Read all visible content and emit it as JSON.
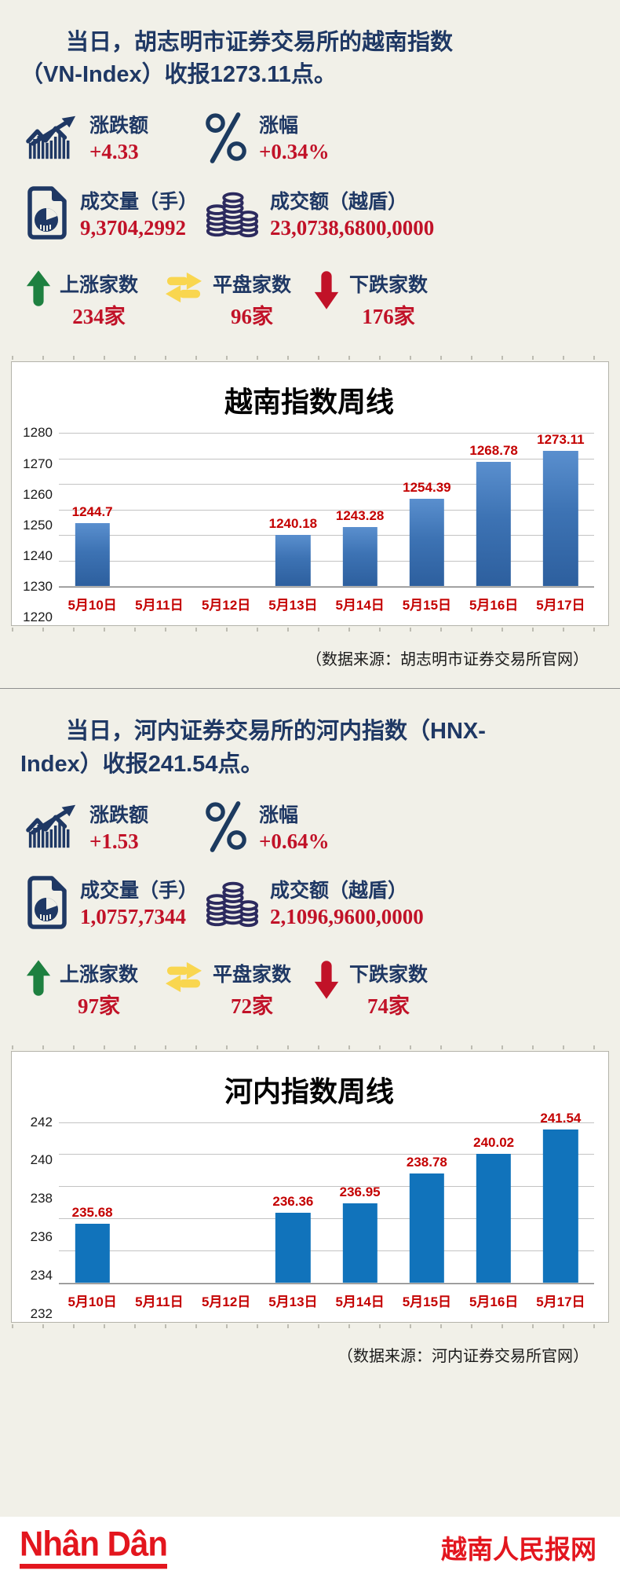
{
  "section1": {
    "title_lines": [
      "当日，胡志明市证券交易所的越南指数",
      "（VN-Index）收报1273.11点。"
    ],
    "stats": [
      {
        "icon": "trend-chart-icon",
        "label": "涨跌额",
        "value": "+4.33"
      },
      {
        "icon": "percent-icon",
        "label": "涨幅",
        "value": "+0.34%"
      },
      {
        "icon": "volume-document-icon",
        "label": "成交量（手）",
        "value": "9,3704,2992"
      },
      {
        "icon": "coins-icon",
        "label": "成交额（越盾）",
        "value": "23,0738,6800,0000"
      }
    ],
    "breadth": [
      {
        "icon": "up-arrow-icon",
        "label": "上涨家数",
        "value": "234家"
      },
      {
        "icon": "flat-arrows-icon",
        "label": "平盘家数",
        "value": "96家"
      },
      {
        "icon": "down-arrow-icon",
        "label": "下跌家数",
        "value": "176家"
      }
    ],
    "source": "（数据来源：胡志明市证券交易所官网）"
  },
  "section2": {
    "title_lines": [
      "当日，河内证券交易所的河内指数（HNX-",
      "Index）收报241.54点。"
    ],
    "stats": [
      {
        "icon": "trend-chart-icon",
        "label": "涨跌额",
        "value": "+1.53"
      },
      {
        "icon": "percent-icon",
        "label": "涨幅",
        "value": "+0.64%"
      },
      {
        "icon": "volume-document-icon",
        "label": "成交量（手）",
        "value": "1,0757,7344"
      },
      {
        "icon": "coins-icon",
        "label": "成交额（越盾）",
        "value": "2,1096,9600,0000"
      }
    ],
    "breadth": [
      {
        "icon": "up-arrow-icon",
        "label": "上涨家数",
        "value": "97家"
      },
      {
        "icon": "flat-arrows-icon",
        "label": "平盘家数",
        "value": "72家"
      },
      {
        "icon": "down-arrow-icon",
        "label": "下跌家数",
        "value": "74家"
      }
    ],
    "source": "（数据来源：河内证券交易所官网）"
  },
  "chart_data": [
    {
      "type": "bar",
      "title": "越南指数周线",
      "categories": [
        "5月10日",
        "5月11日",
        "5月12日",
        "5月13日",
        "5月14日",
        "5月15日",
        "5月16日",
        "5月17日"
      ],
      "values": [
        1244.7,
        null,
        null,
        1240.18,
        1243.28,
        1254.39,
        1268.78,
        1273.11
      ],
      "ylim": [
        1220,
        1280
      ],
      "yticks": [
        1280,
        1270,
        1260,
        1250,
        1240,
        1230,
        1220
      ],
      "grid": true,
      "legend": false,
      "bar_style": "gradient",
      "bar_color": "#3d73b4",
      "label_color": "#c40000"
    },
    {
      "type": "bar",
      "title": "河内指数周线",
      "categories": [
        "5月10日",
        "5月11日",
        "5月12日",
        "5月13日",
        "5月14日",
        "5月15日",
        "5月16日",
        "5月17日"
      ],
      "values": [
        235.68,
        null,
        null,
        236.36,
        236.95,
        238.78,
        240.02,
        241.54
      ],
      "ylim": [
        232,
        242
      ],
      "yticks": [
        242,
        240,
        238,
        236,
        234,
        232
      ],
      "grid": true,
      "legend": false,
      "bar_style": "flat",
      "bar_color": "#1173bb",
      "label_color": "#c40000"
    }
  ],
  "footer": {
    "logo": "Nhân Dân",
    "site_name": "越南人民报网"
  },
  "colors": {
    "background": "#f1f0e8",
    "navy_text": "#1f3864",
    "red_value": "#c11228",
    "chart_label_red": "#c40000",
    "up_green": "#1e8040",
    "flat_yellow": "#f9d64f",
    "down_red": "#c11228",
    "bar_gradient_blue": "#3d73b4",
    "bar_flat_blue": "#1173bb",
    "brand_red": "#e3161e"
  }
}
